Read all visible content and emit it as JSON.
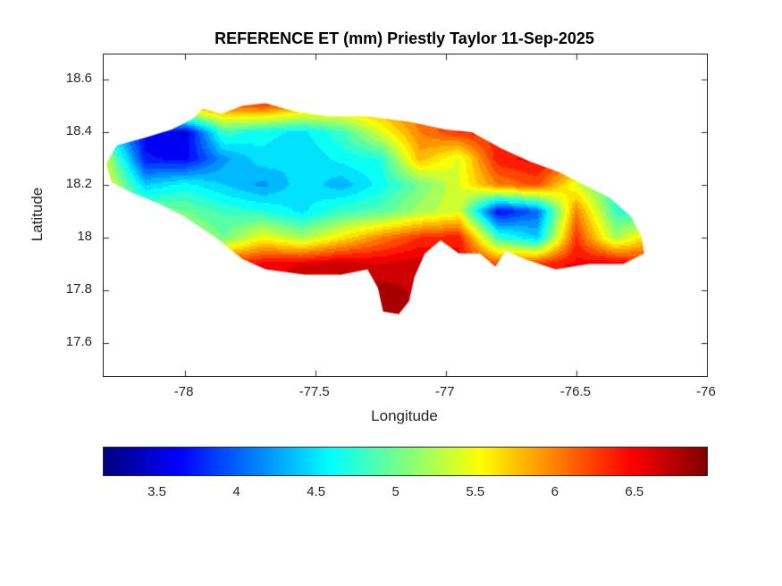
{
  "title": "REFERENCE ET (mm) Priestly Taylor 11-Sep-2025",
  "axes": {
    "xlabel": "Longitude",
    "ylabel": "Latitude",
    "x_tick_labels": [
      "-78",
      "-77.5",
      "-77",
      "-76.5",
      "-76"
    ],
    "y_tick_labels": [
      "18.6",
      "18.4",
      "18.2",
      "18",
      "17.8",
      "17.6"
    ]
  },
  "colorbar": {
    "orientation": "horizontal",
    "tick_labels": [
      "3.5",
      "4",
      "4.5",
      "5",
      "5.5",
      "6",
      "6.5"
    ]
  },
  "colors": {
    "background": "#ffffff",
    "text": "#262626",
    "axis_box": "#262626",
    "title_text": "#000000"
  },
  "chart_data": {
    "type": "heatmap",
    "title": "REFERENCE ET (mm) Priestly Taylor 11-Sep-2025",
    "xlabel": "Longitude",
    "ylabel": "Latitude",
    "xlim": [
      -78.31,
      -76.0
    ],
    "ylim": [
      17.475,
      18.695
    ],
    "x_ticks": [
      -78,
      -77.5,
      -77,
      -76.5,
      -76
    ],
    "y_ticks": [
      18.6,
      18.4,
      18.2,
      18.0,
      17.8,
      17.6
    ],
    "grid_on": false,
    "colormap": "jet",
    "clim": [
      3.16,
      6.95
    ],
    "colorbar_ticks": [
      3.5,
      4,
      4.5,
      5,
      5.5,
      6,
      6.5
    ],
    "lon": [
      -78.3,
      -78.15,
      -78.0,
      -77.85,
      -77.7,
      -77.55,
      -77.4,
      -77.25,
      -77.1,
      -76.95,
      -76.8,
      -76.65,
      -76.5,
      -76.35,
      -76.2
    ],
    "lat": [
      18.5,
      18.4,
      18.3,
      18.2,
      18.1,
      18.0,
      17.9,
      17.8,
      17.7
    ],
    "values_et_mm": [
      [
        5.0,
        5.4,
        5.9,
        6.1,
        6.2,
        5.9,
        5.8,
        5.9,
        6.2,
        6.3,
        6.2,
        6.0,
        5.6,
        5.2,
        5.0
      ],
      [
        4.5,
        3.6,
        3.5,
        4.8,
        4.6,
        4.5,
        4.8,
        5.4,
        6.0,
        6.3,
        6.4,
        6.1,
        5.3,
        5.0,
        4.8
      ],
      [
        5.3,
        3.7,
        3.6,
        4.2,
        4.5,
        4.4,
        4.6,
        4.7,
        5.8,
        5.4,
        6.4,
        6.5,
        6.2,
        5.6,
        5.0
      ],
      [
        5.5,
        4.4,
        4.6,
        4.4,
        4.2,
        4.5,
        4.3,
        4.6,
        5.0,
        5.4,
        6.0,
        6.2,
        5.4,
        4.7,
        4.5
      ],
      [
        5.2,
        5.1,
        5.0,
        4.8,
        4.7,
        4.5,
        4.8,
        4.9,
        5.2,
        5.4,
        3.6,
        4.0,
        6.0,
        4.8,
        4.6
      ],
      [
        5.4,
        5.6,
        5.3,
        5.0,
        5.5,
        5.2,
        5.6,
        6.0,
        6.3,
        6.4,
        4.8,
        4.4,
        6.3,
        5.2,
        5.8
      ],
      [
        5.6,
        5.9,
        6.1,
        6.3,
        6.5,
        6.6,
        6.7,
        6.6,
        6.7,
        6.5,
        6.2,
        6.3,
        6.5,
        6.6,
        6.3
      ],
      [
        5.7,
        6.0,
        6.2,
        6.4,
        6.6,
        6.7,
        6.8,
        6.8,
        6.7,
        6.5,
        6.3,
        6.4,
        6.5,
        6.5,
        6.3
      ],
      [
        5.7,
        6.0,
        6.2,
        6.4,
        6.6,
        6.8,
        6.9,
        6.8,
        6.7,
        6.5,
        6.3,
        6.4,
        6.5,
        6.5,
        6.3
      ]
    ],
    "boundary_lonlat": [
      [
        -78.3,
        18.28
      ],
      [
        -78.26,
        18.35
      ],
      [
        -78.15,
        18.38
      ],
      [
        -78.05,
        18.41
      ],
      [
        -77.97,
        18.45
      ],
      [
        -77.93,
        18.49
      ],
      [
        -77.86,
        18.47
      ],
      [
        -77.78,
        18.5
      ],
      [
        -77.69,
        18.51
      ],
      [
        -77.58,
        18.48
      ],
      [
        -77.45,
        18.46
      ],
      [
        -77.3,
        18.46
      ],
      [
        -77.14,
        18.44
      ],
      [
        -77.0,
        18.41
      ],
      [
        -76.9,
        18.4
      ],
      [
        -76.79,
        18.34
      ],
      [
        -76.68,
        18.29
      ],
      [
        -76.57,
        18.25
      ],
      [
        -76.47,
        18.2
      ],
      [
        -76.37,
        18.15
      ],
      [
        -76.29,
        18.08
      ],
      [
        -76.25,
        18.0
      ],
      [
        -76.24,
        17.94
      ],
      [
        -76.32,
        17.9
      ],
      [
        -76.45,
        17.9
      ],
      [
        -76.58,
        17.88
      ],
      [
        -76.7,
        17.92
      ],
      [
        -76.77,
        17.95
      ],
      [
        -76.81,
        17.89
      ],
      [
        -76.87,
        17.94
      ],
      [
        -76.95,
        17.94
      ],
      [
        -77.02,
        17.99
      ],
      [
        -77.08,
        17.94
      ],
      [
        -77.12,
        17.85
      ],
      [
        -77.14,
        17.76
      ],
      [
        -77.18,
        17.71
      ],
      [
        -77.24,
        17.72
      ],
      [
        -77.26,
        17.81
      ],
      [
        -77.3,
        17.88
      ],
      [
        -77.4,
        17.86
      ],
      [
        -77.54,
        17.86
      ],
      [
        -77.69,
        17.88
      ],
      [
        -77.78,
        17.92
      ],
      [
        -77.88,
        18.0
      ],
      [
        -78.0,
        18.08
      ],
      [
        -78.1,
        18.13
      ],
      [
        -78.2,
        18.17
      ],
      [
        -78.28,
        18.21
      ]
    ]
  }
}
